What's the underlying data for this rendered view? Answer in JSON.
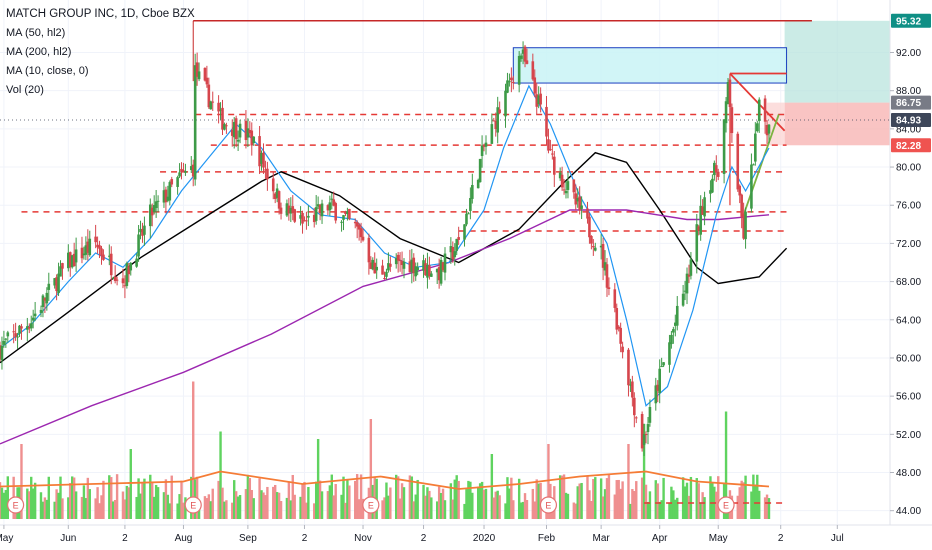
{
  "legend": {
    "title": "MATCH GROUP INC, 1D, Cboe BZX",
    "items": [
      "MA (50, hl2)",
      "MA (200, hl2)",
      "MA (10, close, 0)",
      "Vol (20)"
    ]
  },
  "price_tags": [
    {
      "label": "95.32",
      "value": 95.32,
      "color": "#0f8f85"
    },
    {
      "label": "86.75",
      "value": 86.75,
      "color": "#787b86"
    },
    {
      "label": "84.93",
      "value": 84.93,
      "color": "#3d4659"
    },
    {
      "label": "82.28",
      "value": 82.28,
      "color": "#ef5350"
    }
  ],
  "earnings_marker": "E",
  "chart_data": {
    "type": "candlestick",
    "title": "MATCH GROUP INC, 1D, Cboe BZX",
    "y_axis": {
      "range": [
        42.5,
        97.5
      ],
      "ticks": [
        44,
        48,
        52,
        56,
        60,
        64,
        68,
        72,
        76,
        80,
        84,
        88,
        92
      ],
      "tick_labels": [
        "44.00",
        "48.00",
        "52.00",
        "56.00",
        "60.00",
        "64.00",
        "68.00",
        "72.00",
        "76.00",
        "80.00",
        "84.00",
        "88.00",
        "92.00"
      ],
      "position": "right"
    },
    "x_axis": {
      "start": "2019-04-29",
      "end": "2020-07-28",
      "tick_labels": [
        {
          "label": "May",
          "date": "2019-05-01"
        },
        {
          "label": "Jun",
          "date": "2019-06-03"
        },
        {
          "label": "2",
          "date": "2019-07-02"
        },
        {
          "label": "Aug",
          "date": "2019-08-01"
        },
        {
          "label": "Sep",
          "date": "2019-09-03"
        },
        {
          "label": "2",
          "date": "2019-10-02"
        },
        {
          "label": "Nov",
          "date": "2019-11-01"
        },
        {
          "label": "2",
          "date": "2019-12-02"
        },
        {
          "label": "2020",
          "date": "2020-01-02"
        },
        {
          "label": "Feb",
          "date": "2020-02-03"
        },
        {
          "label": "Mar",
          "date": "2020-03-02"
        },
        {
          "label": "Apr",
          "date": "2020-04-01"
        },
        {
          "label": "May",
          "date": "2020-05-01"
        },
        {
          "label": "2",
          "date": "2020-06-02"
        },
        {
          "label": "Jul",
          "date": "2020-07-01"
        }
      ]
    },
    "price_path": [
      [
        "2019-04-29",
        61
      ],
      [
        "2019-05-15",
        64
      ],
      [
        "2019-06-03",
        70
      ],
      [
        "2019-06-17",
        72
      ],
      [
        "2019-07-01",
        68
      ],
      [
        "2019-07-15",
        75
      ],
      [
        "2019-07-31",
        79
      ],
      [
        "2019-08-06",
        80
      ],
      [
        "2019-08-07",
        90
      ],
      [
        "2019-08-20",
        85
      ],
      [
        "2019-09-05",
        83
      ],
      [
        "2019-09-20",
        76
      ],
      [
        "2019-10-01",
        74
      ],
      [
        "2019-10-15",
        76
      ],
      [
        "2019-10-31",
        73
      ],
      [
        "2019-11-07",
        69
      ],
      [
        "2019-11-25",
        70
      ],
      [
        "2019-12-10",
        69
      ],
      [
        "2019-12-20",
        72
      ],
      [
        "2020-01-02",
        82
      ],
      [
        "2020-01-10",
        86
      ],
      [
        "2020-01-21",
        92
      ],
      [
        "2020-01-31",
        86
      ],
      [
        "2020-02-05",
        81
      ],
      [
        "2020-02-21",
        75
      ],
      [
        "2020-03-02",
        71
      ],
      [
        "2020-03-10",
        64
      ],
      [
        "2020-03-18",
        56
      ],
      [
        "2020-03-23",
        51
      ],
      [
        "2020-04-01",
        58
      ],
      [
        "2020-04-15",
        68
      ],
      [
        "2020-04-25",
        78
      ],
      [
        "2020-05-01",
        80
      ],
      [
        "2020-05-06",
        88
      ],
      [
        "2020-05-12",
        76
      ],
      [
        "2020-05-14",
        73
      ],
      [
        "2020-05-22",
        86
      ],
      [
        "2020-05-27",
        84
      ]
    ],
    "series": [
      {
        "name": "MA (50, hl2)",
        "color": "#000000",
        "points": [
          [
            "2019-04-29",
            59.5
          ],
          [
            "2019-06-01",
            64.5
          ],
          [
            "2019-07-10",
            70.5
          ],
          [
            "2019-08-10",
            74.5
          ],
          [
            "2019-09-10",
            78.5
          ],
          [
            "2019-09-20",
            79.5
          ],
          [
            "2019-10-20",
            77
          ],
          [
            "2019-11-20",
            72.5
          ],
          [
            "2019-12-20",
            70
          ],
          [
            "2020-01-20",
            73.5
          ],
          [
            "2020-02-10",
            78
          ],
          [
            "2020-02-28",
            81.5
          ],
          [
            "2020-03-15",
            80.5
          ],
          [
            "2020-04-01",
            75.5
          ],
          [
            "2020-04-20",
            69.5
          ],
          [
            "2020-05-01",
            67.8
          ],
          [
            "2020-05-22",
            68.5
          ],
          [
            "2020-06-05",
            71.5
          ]
        ]
      },
      {
        "name": "MA (200, hl2)",
        "color": "#9c27b0",
        "points": [
          [
            "2019-04-29",
            51
          ],
          [
            "2019-06-15",
            55
          ],
          [
            "2019-08-01",
            58.5
          ],
          [
            "2019-09-15",
            62.5
          ],
          [
            "2019-11-01",
            67.5
          ],
          [
            "2019-12-15",
            70
          ],
          [
            "2020-01-15",
            72.5
          ],
          [
            "2020-02-15",
            75.5
          ],
          [
            "2020-03-15",
            75.5
          ],
          [
            "2020-04-15",
            74.5
          ],
          [
            "2020-05-01",
            74.5
          ],
          [
            "2020-05-27",
            75
          ]
        ]
      },
      {
        "name": "MA (10, close, 0)",
        "color": "#2196f3",
        "points": [
          [
            "2019-04-29",
            61
          ],
          [
            "2019-05-15",
            63.5
          ],
          [
            "2019-06-03",
            68
          ],
          [
            "2019-06-17",
            71
          ],
          [
            "2019-07-01",
            69.5
          ],
          [
            "2019-07-15",
            72.5
          ],
          [
            "2019-07-31",
            77.5
          ],
          [
            "2019-08-14",
            81
          ],
          [
            "2019-08-28",
            84.5
          ],
          [
            "2019-09-10",
            82
          ],
          [
            "2019-09-25",
            77.5
          ],
          [
            "2019-10-10",
            75
          ],
          [
            "2019-10-28",
            74.5
          ],
          [
            "2019-11-12",
            71
          ],
          [
            "2019-11-28",
            69.5
          ],
          [
            "2019-12-15",
            70
          ],
          [
            "2020-01-02",
            75.5
          ],
          [
            "2020-01-12",
            82
          ],
          [
            "2020-01-25",
            88.5
          ],
          [
            "2020-02-05",
            84.5
          ],
          [
            "2020-02-20",
            77
          ],
          [
            "2020-03-05",
            72
          ],
          [
            "2020-03-15",
            64
          ],
          [
            "2020-03-25",
            55
          ],
          [
            "2020-04-05",
            57
          ],
          [
            "2020-04-18",
            65
          ],
          [
            "2020-04-30",
            75
          ],
          [
            "2020-05-08",
            80
          ],
          [
            "2020-05-15",
            77.5
          ],
          [
            "2020-05-27",
            82
          ]
        ]
      }
    ],
    "volume": {
      "name": "Vol (20)",
      "color_up": "#26a69a",
      "spikes": [
        {
          "date": "2019-05-10",
          "value": 30
        },
        {
          "date": "2019-07-05",
          "value": 28
        },
        {
          "date": "2019-08-06",
          "value": 55
        },
        {
          "date": "2019-08-20",
          "value": 35
        },
        {
          "date": "2019-10-09",
          "value": 32
        },
        {
          "date": "2019-11-05",
          "value": 40
        },
        {
          "date": "2020-01-06",
          "value": 26
        },
        {
          "date": "2020-02-04",
          "value": 30
        },
        {
          "date": "2020-03-16",
          "value": 30
        },
        {
          "date": "2020-03-24",
          "value": 38
        },
        {
          "date": "2020-05-05",
          "value": 43
        }
      ]
    },
    "earnings_dates": [
      "2019-05-07",
      "2019-08-06",
      "2019-11-05",
      "2020-02-04",
      "2020-05-05"
    ],
    "drawings": {
      "horizontal_solid_red": [
        {
          "value": 95.32,
          "from": "2019-08-06",
          "to": "2020-06-18"
        }
      ],
      "horizontal_dashed_red": [
        {
          "value": 85.5,
          "from": "2019-08-07",
          "to": "2020-06-05"
        },
        {
          "value": 82.3,
          "from": "2019-08-15",
          "to": "2020-06-05"
        },
        {
          "value": 79.5,
          "from": "2019-07-20",
          "to": "2020-06-05"
        },
        {
          "value": 75.3,
          "from": "2019-05-10",
          "to": "2020-06-05"
        },
        {
          "value": 73.3,
          "from": "2019-12-20",
          "to": "2020-06-05"
        },
        {
          "value": 44.8,
          "from": "2020-03-24",
          "to": "2020-06-05"
        }
      ],
      "resistance_box": {
        "from": "2020-01-17",
        "to": "2020-06-05",
        "low": 88.8,
        "high": 92.5
      },
      "target_box": {
        "from": "2020-06-04",
        "to": "2020-07-28",
        "low": 86.75,
        "high": 95.32
      },
      "stop_box": {
        "from": "2020-06-04",
        "to": "2020-07-28",
        "low": 82.28,
        "high": 86.75
      },
      "trend_line_down": [
        [
          "2020-05-07",
          89.8
        ],
        [
          "2020-06-04",
          83.8
        ]
      ],
      "flat_line": [
        [
          "2020-05-07",
          89.8
        ],
        [
          "2020-06-05",
          89.8
        ]
      ],
      "trend_line_up": [
        [
          "2020-05-14",
          75
        ],
        [
          "2020-06-01",
          85.5
        ]
      ]
    }
  }
}
